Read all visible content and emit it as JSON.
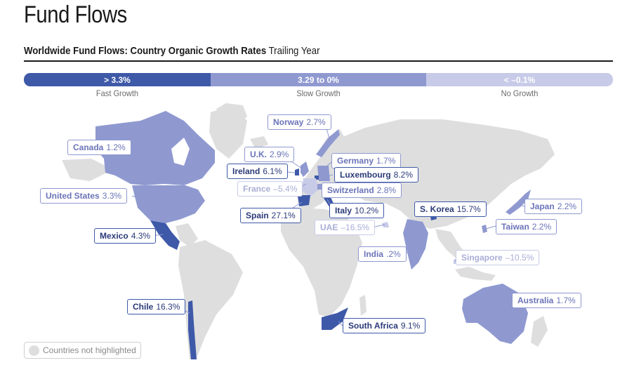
{
  "title": "Fund Flows",
  "subtitle": {
    "bold": "Worldwide Fund Flows: Country Organic Growth Rates",
    "light": "Trailing Year"
  },
  "legend": [
    {
      "id": "fast",
      "range": "> 3.3%",
      "label": "Fast Growth",
      "color": "#3e59a8"
    },
    {
      "id": "slow",
      "range": "3.29 to 0%",
      "label": "Slow Growth",
      "color": "#8f99d0"
    },
    {
      "id": "none",
      "range": "< –0.1%",
      "label": "No Growth",
      "color": "#c8cbe8"
    }
  ],
  "countries": [
    {
      "name": "Norway",
      "value": "2.7%",
      "category": "slow"
    },
    {
      "name": "Canada",
      "value": "1.2%",
      "category": "slow"
    },
    {
      "name": "U.K.",
      "value": "2.9%",
      "category": "slow"
    },
    {
      "name": "Germany",
      "value": "1.7%",
      "category": "slow"
    },
    {
      "name": "Ireland",
      "value": "6.1%",
      "category": "fast"
    },
    {
      "name": "Luxembourg",
      "value": "8.2%",
      "category": "fast"
    },
    {
      "name": "France",
      "value": "–5.4%",
      "category": "none"
    },
    {
      "name": "Switzerland",
      "value": "2.8%",
      "category": "slow"
    },
    {
      "name": "United States",
      "value": "3.3%",
      "category": "slow"
    },
    {
      "name": "Spain",
      "value": "27.1%",
      "category": "fast"
    },
    {
      "name": "Italy",
      "value": "10.2%",
      "category": "fast"
    },
    {
      "name": "S. Korea",
      "value": "15.7%",
      "category": "fast"
    },
    {
      "name": "Japan",
      "value": "2.2%",
      "category": "slow"
    },
    {
      "name": "UAE",
      "value": "–16.5%",
      "category": "none"
    },
    {
      "name": "Taiwan",
      "value": "2.2%",
      "category": "slow"
    },
    {
      "name": "Mexico",
      "value": "4.3%",
      "category": "fast"
    },
    {
      "name": "India",
      "value": ".2%",
      "category": "slow"
    },
    {
      "name": "Singapore",
      "value": "–10.5%",
      "category": "none"
    },
    {
      "name": "Chile",
      "value": "16.3%",
      "category": "fast"
    },
    {
      "name": "Australia",
      "value": "1.7%",
      "category": "slow"
    },
    {
      "name": "South Africa",
      "value": "9.1%",
      "category": "fast"
    }
  ],
  "note": "Countries not highlighted",
  "colors": {
    "base": "#dedede",
    "fast": "#3e59a8",
    "slow": "#8f99d0",
    "none": "#c8cbe8"
  }
}
